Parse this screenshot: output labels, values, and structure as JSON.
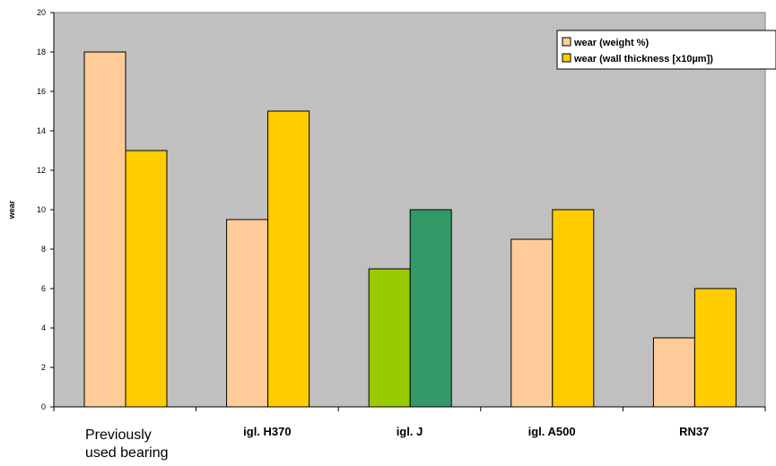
{
  "chart_data": {
    "type": "bar",
    "title": "",
    "xlabel": "",
    "ylabel": "wear",
    "ylim": [
      0,
      20
    ],
    "yticks": [
      0,
      2,
      4,
      6,
      8,
      10,
      12,
      14,
      16,
      18,
      20
    ],
    "grid": false,
    "legend_position": "top-right",
    "categories": [
      "Previously used bearing",
      "igl. H370",
      "igl. J",
      "igl. A500",
      "RN37"
    ],
    "series": [
      {
        "name": "wear (weight %)",
        "color": "#ffcc99",
        "values": [
          18,
          9.5,
          7,
          8.5,
          3.5
        ],
        "point_colors": [
          "#ffcc99",
          "#ffcc99",
          "#99cc00",
          "#ffcc99",
          "#ffcc99"
        ]
      },
      {
        "name": "wear (wall thickness [x10µm])",
        "color": "#ffcc00",
        "values": [
          13,
          15,
          10,
          10,
          6
        ],
        "point_colors": [
          "#ffcc00",
          "#ffcc00",
          "#339966",
          "#ffcc00",
          "#ffcc00"
        ]
      }
    ],
    "colors": {
      "plot_background": "#c0c0c0",
      "axis": "#000000"
    }
  }
}
